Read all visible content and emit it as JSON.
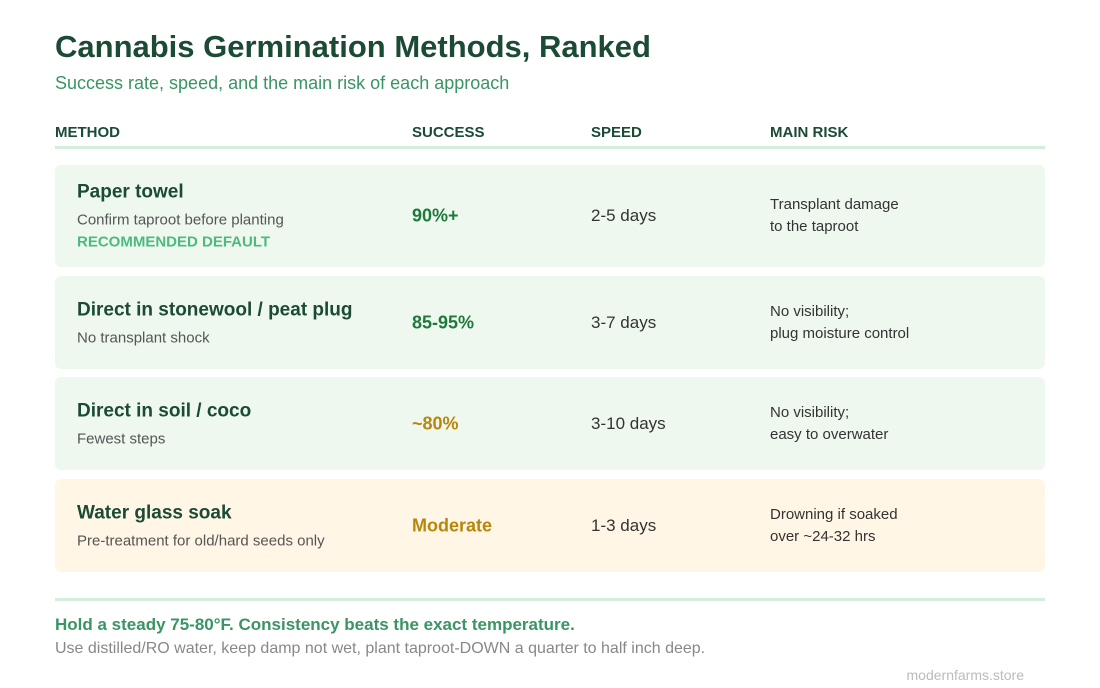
{
  "header": {
    "title": "Cannabis Germination Methods, Ranked",
    "subtitle": "Success rate, speed, and the main risk of each approach"
  },
  "table": {
    "columns": [
      "METHOD",
      "SUCCESS",
      "SPEED",
      "MAIN RISK"
    ],
    "rows": [
      {
        "method": "Paper towel",
        "note": "Confirm taproot before planting",
        "tag": "RECOMMENDED DEFAULT",
        "success": "90%+",
        "speed": "2-5 days",
        "risk": [
          "Transplant damage",
          "to the taproot"
        ]
      },
      {
        "method": "Direct in stonewool / peat plug",
        "note": "No transplant shock",
        "success": "85-95%",
        "speed": "3-7 days",
        "risk": [
          "No visibility;",
          "plug moisture control"
        ]
      },
      {
        "method": "Direct in soil / coco",
        "note": "Fewest steps",
        "success": "~80%",
        "speed": "3-10 days",
        "risk": [
          "No visibility;",
          "easy to overwater"
        ]
      },
      {
        "method": "Water glass soak",
        "note": "Pre-treatment for old/hard seeds only",
        "success": "Moderate",
        "speed": "1-3 days",
        "risk": [
          "Drowning if soaked",
          "over ~24-32 hrs"
        ]
      }
    ]
  },
  "footer": {
    "highlight": "Hold a steady 75-80°F. Consistency beats the exact temperature.",
    "text": "Use distilled/RO water, keep damp not wet, plant taproot-DOWN a quarter to half inch deep.",
    "source": "modernfarms.store"
  }
}
